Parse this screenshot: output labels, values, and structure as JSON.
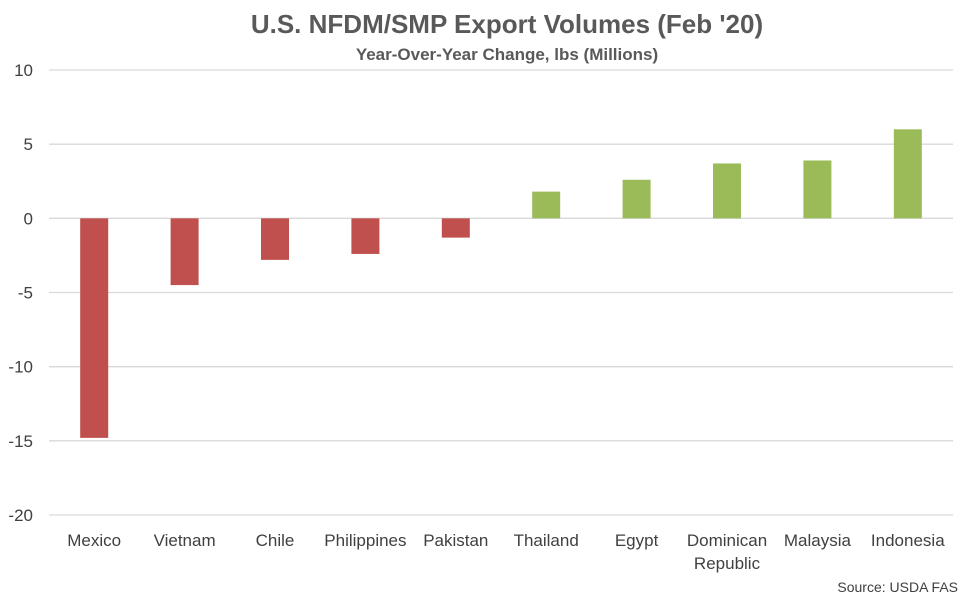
{
  "chart_data": {
    "type": "bar",
    "title": "U.S. NFDM/SMP Export Volumes (Feb '20)",
    "subtitle": "Year-Over-Year Change, lbs (Millions)",
    "categories": [
      "Mexico",
      "Vietnam",
      "Chile",
      "Philippines",
      "Pakistan",
      "Thailand",
      "Egypt",
      "Dominican Republic",
      "Malaysia",
      "Indonesia"
    ],
    "values": [
      -14.8,
      -4.5,
      -2.8,
      -2.4,
      -1.3,
      1.8,
      2.6,
      3.7,
      3.9,
      6.0
    ],
    "ylim": [
      -20,
      10
    ],
    "yticks": [
      10,
      5,
      0,
      -5,
      -10,
      -15,
      -20
    ],
    "grid": true,
    "legend": "none",
    "colors": {
      "negative": "#c0504d",
      "positive": "#9bbb59",
      "grid": "#d9d9d9"
    },
    "source": "Source: USDA FAS"
  }
}
